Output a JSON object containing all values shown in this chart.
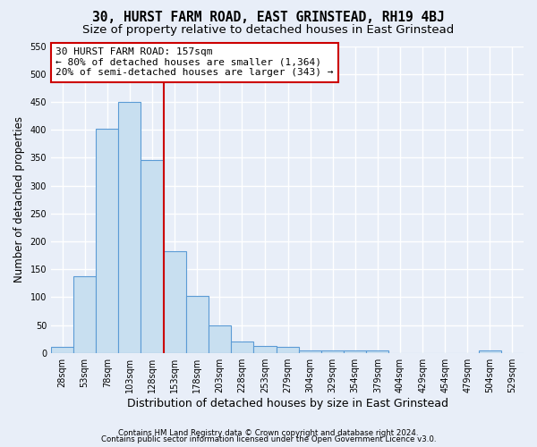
{
  "title": "30, HURST FARM ROAD, EAST GRINSTEAD, RH19 4BJ",
  "subtitle": "Size of property relative to detached houses in East Grinstead",
  "xlabel": "Distribution of detached houses by size in East Grinstead",
  "ylabel": "Number of detached properties",
  "bar_left_edges": [
    28,
    53,
    78,
    103,
    128,
    153,
    178,
    203,
    228,
    253,
    279,
    304,
    329,
    354,
    379,
    404,
    429,
    454,
    479,
    504,
    529
  ],
  "bar_widths": [
    25,
    25,
    25,
    25,
    25,
    25,
    25,
    25,
    25,
    26,
    25,
    25,
    25,
    25,
    25,
    25,
    25,
    25,
    25,
    25,
    25
  ],
  "bar_heights": [
    10,
    137,
    402,
    450,
    345,
    182,
    102,
    50,
    20,
    13,
    10,
    5,
    5,
    5,
    5,
    0,
    0,
    0,
    0,
    5,
    0
  ],
  "bar_color": "#c8dff0",
  "bar_edge_color": "#5b9bd5",
  "red_line_x": 153,
  "annotation_title": "30 HURST FARM ROAD: 157sqm",
  "annotation_line1": "← 80% of detached houses are smaller (1,364)",
  "annotation_line2": "20% of semi-detached houses are larger (343) →",
  "annotation_box_facecolor": "#ffffff",
  "annotation_box_edgecolor": "#cc0000",
  "red_line_color": "#cc0000",
  "ylim": [
    0,
    550
  ],
  "yticks": [
    0,
    50,
    100,
    150,
    200,
    250,
    300,
    350,
    400,
    450,
    500,
    550
  ],
  "xlim_left": 28,
  "xlim_right": 554,
  "background_color": "#e8eef8",
  "grid_color": "#ffffff",
  "title_fontsize": 10.5,
  "subtitle_fontsize": 9.5,
  "xlabel_fontsize": 9,
  "ylabel_fontsize": 8.5,
  "annot_fontsize": 8,
  "tick_fontsize": 7,
  "footer_line1": "Contains HM Land Registry data © Crown copyright and database right 2024.",
  "footer_line2": "Contains public sector information licensed under the Open Government Licence v3.0."
}
